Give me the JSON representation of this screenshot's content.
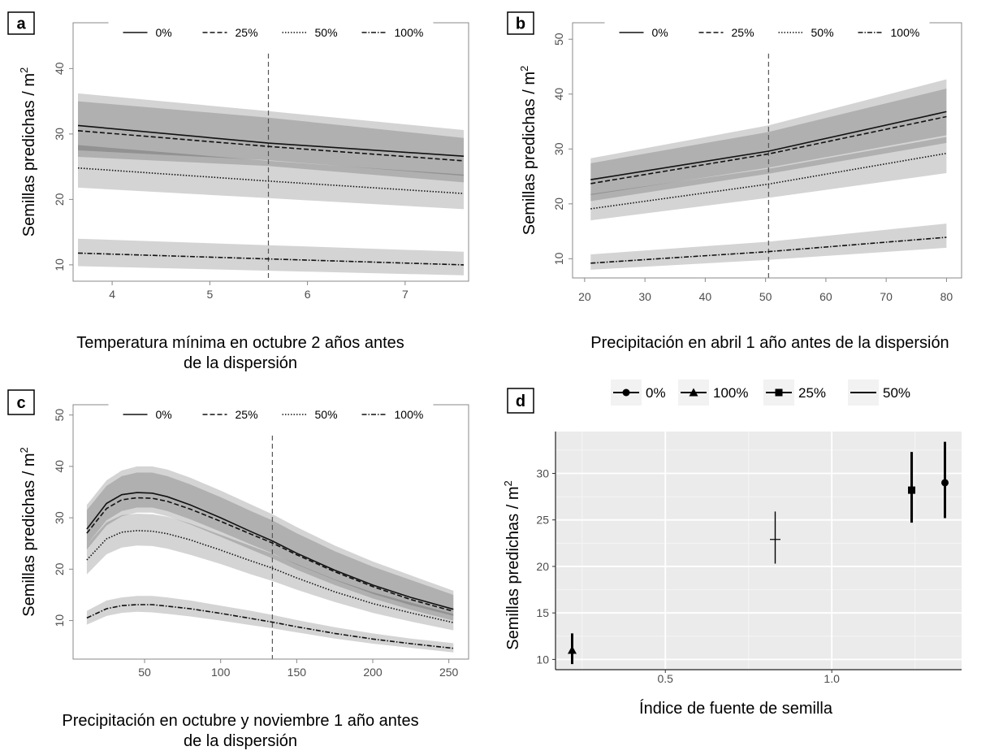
{
  "chart_data": [
    {
      "panel": "a",
      "type": "line",
      "xlabel": [
        "Temperatura mínima  en octubre 2 años antes",
        "de la dispersión"
      ],
      "ylabel": "Semillas predichas / m",
      "ylabel_sup": "2",
      "xlim": [
        3.6,
        7.65
      ],
      "ylim": [
        7.5,
        47
      ],
      "xticks": [
        4,
        5,
        6,
        7
      ],
      "yticks": [
        10,
        20,
        30,
        40
      ],
      "vline": 5.6,
      "legend_position": "top",
      "series": [
        {
          "name": "0%",
          "style": "solid",
          "x": [
            3.65,
            5.6,
            7.6
          ],
          "y": [
            31.3,
            28.6,
            26.6
          ],
          "band_outer": [
            [
              26.5,
              36.2
            ],
            [
              25.1,
              33.5
            ],
            [
              22.6,
              30.6
            ]
          ],
          "band_inner": [
            [
              27.5,
              35.0
            ],
            [
              26.0,
              32.5
            ],
            [
              23.6,
              29.4
            ]
          ]
        },
        {
          "name": "25%",
          "style": "dashed",
          "x": [
            3.65,
            5.6,
            7.6
          ],
          "y": [
            30.5,
            28.1,
            25.9
          ]
        },
        {
          "name": "50%",
          "style": "dotted",
          "x": [
            3.65,
            5.6,
            7.6
          ],
          "y": [
            24.8,
            22.8,
            20.9
          ],
          "band_outer": [
            [
              21.8,
              28.3
            ],
            [
              20.2,
              25.9
            ],
            [
              18.5,
              23.8
            ]
          ]
        },
        {
          "name": "100%",
          "style": "dotdash",
          "x": [
            3.65,
            5.6,
            7.6
          ],
          "y": [
            11.8,
            10.9,
            10.0
          ],
          "band_outer": [
            [
              9.8,
              14.0
            ],
            [
              9.1,
              13.0
            ],
            [
              8.4,
              12.0
            ]
          ]
        }
      ]
    },
    {
      "panel": "b",
      "type": "line",
      "xlabel": [
        "Precipitación en abril 1 año antes de la dispersión"
      ],
      "ylabel": "Semillas predichas / m",
      "ylabel_sup": "2",
      "xlim": [
        18,
        82.5
      ],
      "ylim": [
        6.5,
        53
      ],
      "xticks": [
        20,
        30,
        40,
        50,
        60,
        70,
        80
      ],
      "yticks": [
        10,
        20,
        30,
        40,
        50
      ],
      "vline": 50.5,
      "legend_position": "top",
      "series": [
        {
          "name": "0%",
          "style": "solid",
          "x": [
            21,
            50.5,
            80
          ],
          "y": [
            24.4,
            29.6,
            36.8
          ],
          "band_outer": [
            [
              20.5,
              28.3
            ],
            [
              25.5,
              34.3
            ],
            [
              31.1,
              42.7
            ]
          ],
          "band_inner": [
            [
              21.6,
              27.4
            ],
            [
              26.6,
              33.1
            ],
            [
              32.5,
              41.0
            ]
          ]
        },
        {
          "name": "25%",
          "style": "dashed",
          "x": [
            21,
            50.5,
            80
          ],
          "y": [
            23.7,
            29.1,
            35.9
          ]
        },
        {
          "name": "50%",
          "style": "dotted",
          "x": [
            21,
            50.5,
            80
          ],
          "y": [
            19.1,
            23.6,
            29.2
          ],
          "band_outer": [
            [
              17.0,
              21.8
            ],
            [
              21.1,
              26.4
            ],
            [
              25.6,
              32.2
            ]
          ]
        },
        {
          "name": "100%",
          "style": "dotdash",
          "x": [
            21,
            50.5,
            80
          ],
          "y": [
            9.2,
            11.3,
            13.9
          ],
          "band_outer": [
            [
              8.0,
              10.8
            ],
            [
              9.8,
              13.1
            ],
            [
              12.0,
              16.4
            ]
          ]
        }
      ]
    },
    {
      "panel": "c",
      "type": "line",
      "xlabel": [
        "Precipitación en octubre y noviembre  1 año antes",
        "de la dispersión"
      ],
      "ylabel": "Semillas predichas / m",
      "ylabel_sup": "2",
      "xlim": [
        3,
        263
      ],
      "ylim": [
        2.5,
        52
      ],
      "xticks": [
        50,
        100,
        150,
        200,
        250
      ],
      "yticks": [
        10,
        20,
        30,
        40,
        50
      ],
      "vline": 134,
      "legend_position": "top",
      "x": [
        12,
        25,
        35,
        45,
        55,
        65,
        80,
        100,
        120,
        134,
        150,
        175,
        200,
        225,
        253
      ],
      "series": [
        {
          "name": "0%",
          "style": "solid",
          "y": [
            27.8,
            32.8,
            34.5,
            34.9,
            34.8,
            34.1,
            32.5,
            30.0,
            27.3,
            25.5,
            23.1,
            19.8,
            16.9,
            14.5,
            12.2
          ],
          "band_outer": [
            [
              23.8,
              32.5
            ],
            [
              28.5,
              37.3
            ],
            [
              30.3,
              39.2
            ],
            [
              31.0,
              40.0
            ],
            [
              31.0,
              40.0
            ],
            [
              30.3,
              39.4
            ],
            [
              28.7,
              37.8
            ],
            [
              26.3,
              35.3
            ],
            [
              23.8,
              32.6
            ],
            [
              22.1,
              30.7
            ],
            [
              19.9,
              28.2
            ],
            [
              16.9,
              24.6
            ],
            [
              14.3,
              21.5
            ],
            [
              12.1,
              18.8
            ],
            [
              10.0,
              15.8
            ]
          ],
          "band_inner": [
            [
              24.8,
              31.5
            ],
            [
              29.5,
              36.2
            ],
            [
              31.3,
              38.1
            ],
            [
              32.0,
              38.8
            ],
            [
              32.0,
              38.8
            ],
            [
              31.3,
              38.1
            ],
            [
              29.7,
              36.5
            ],
            [
              27.3,
              34.0
            ],
            [
              24.8,
              31.3
            ],
            [
              23.1,
              29.5
            ],
            [
              20.9,
              27.0
            ],
            [
              17.9,
              23.5
            ],
            [
              15.2,
              20.5
            ],
            [
              13.0,
              17.9
            ],
            [
              10.9,
              15.0
            ]
          ]
        },
        {
          "name": "25%",
          "style": "dashed",
          "y": [
            27.0,
            31.8,
            33.5,
            33.9,
            33.8,
            33.2,
            31.7,
            29.3,
            26.8,
            25.1,
            22.8,
            19.5,
            16.6,
            14.1,
            11.8
          ]
        },
        {
          "name": "50%",
          "style": "dotted",
          "y": [
            21.8,
            25.9,
            27.2,
            27.5,
            27.4,
            26.9,
            25.7,
            23.7,
            21.6,
            20.2,
            18.3,
            15.6,
            13.3,
            11.5,
            9.6
          ],
          "band_outer": [
            [
              19.0,
              24.8
            ],
            [
              22.9,
              29.1
            ],
            [
              24.2,
              30.5
            ],
            [
              24.6,
              30.8
            ],
            [
              24.5,
              30.7
            ],
            [
              24.0,
              30.2
            ],
            [
              22.8,
              28.9
            ],
            [
              21.0,
              26.7
            ],
            [
              19.0,
              24.5
            ],
            [
              17.7,
              23.0
            ],
            [
              16.0,
              21.0
            ],
            [
              13.6,
              18.0
            ],
            [
              11.5,
              15.5
            ],
            [
              9.8,
              13.5
            ],
            [
              8.1,
              11.3
            ]
          ]
        },
        {
          "name": "100%",
          "style": "dotdash",
          "y": [
            10.5,
            12.3,
            12.9,
            13.1,
            13.1,
            12.8,
            12.3,
            11.4,
            10.4,
            9.7,
            8.8,
            7.5,
            6.4,
            5.5,
            4.6
          ],
          "band_outer": [
            [
              9.2,
              11.9
            ],
            [
              10.9,
              13.9
            ],
            [
              11.5,
              14.5
            ],
            [
              11.7,
              14.8
            ],
            [
              11.6,
              14.8
            ],
            [
              11.3,
              14.5
            ],
            [
              10.8,
              13.9
            ],
            [
              10.0,
              12.9
            ],
            [
              9.1,
              11.9
            ],
            [
              8.5,
              11.1
            ],
            [
              7.7,
              10.1
            ],
            [
              6.5,
              8.7
            ],
            [
              5.5,
              7.5
            ],
            [
              4.7,
              6.5
            ],
            [
              3.8,
              5.6
            ]
          ]
        }
      ]
    },
    {
      "panel": "d",
      "type": "scatter",
      "xlabel": [
        "Índice de fuente de semilla"
      ],
      "ylabel": "Semillas predichas / m",
      "ylabel_sup": "2",
      "xlim": [
        0.17,
        1.39
      ],
      "ylim": [
        8.9,
        34.5
      ],
      "xticks": [
        0.5,
        1.0
      ],
      "xtick_labels": [
        "0.5",
        "1.0"
      ],
      "yticks": [
        10,
        15,
        20,
        25,
        30
      ],
      "legend_position": "top",
      "background": "#ebebeb",
      "points": [
        {
          "name": "0%",
          "shape": "circle",
          "x": 1.34,
          "y": 29.0,
          "lo": 25.2,
          "hi": 33.4
        },
        {
          "name": "100%",
          "shape": "triangle",
          "x": 0.22,
          "y": 11.0,
          "lo": 9.5,
          "hi": 12.8
        },
        {
          "name": "25%",
          "shape": "square",
          "x": 1.24,
          "y": 28.2,
          "lo": 24.7,
          "hi": 32.3
        },
        {
          "name": "50%",
          "shape": "plus",
          "x": 0.83,
          "y": 22.9,
          "lo": 20.3,
          "hi": 25.9
        }
      ]
    }
  ]
}
